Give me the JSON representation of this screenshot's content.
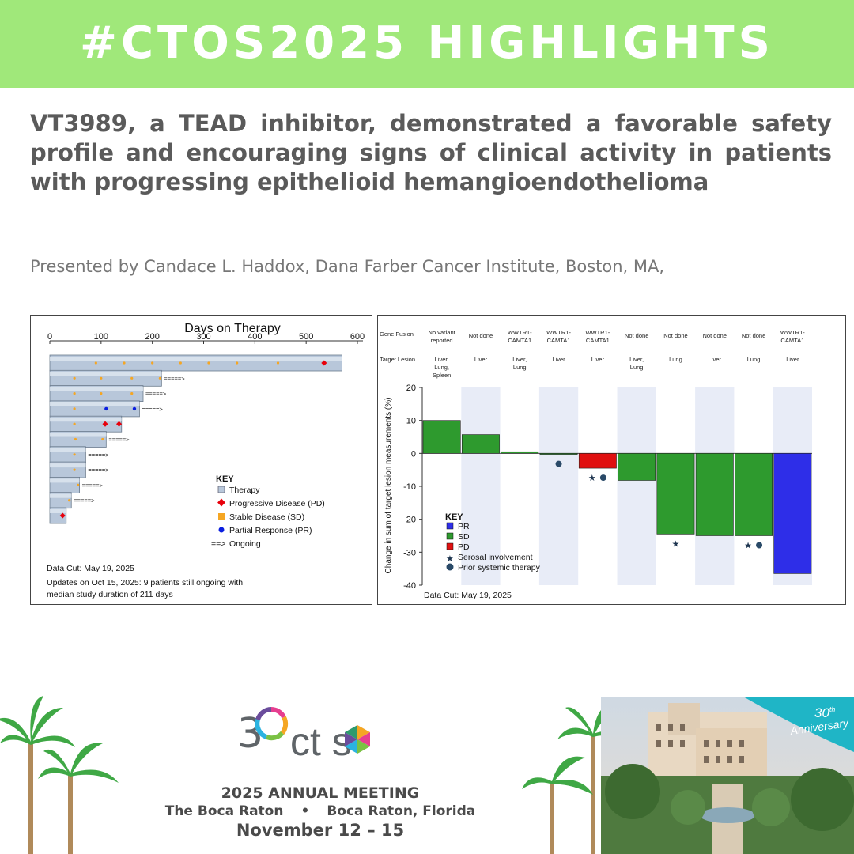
{
  "header": {
    "title": "#CTOS2025 HIGHLIGHTS",
    "bg_color": "#a0e87a"
  },
  "headline": "VT3989, a TEAD inhibitor, demonstrated a favorable safety profile and encouraging signs of clinical activity in patients with progressing epithelioid hemangioendothelioma",
  "presenter": "Presented by Candace L. Haddox, Dana Farber Cancer Institute, Boston, MA,",
  "chart_data": [
    {
      "type": "bar",
      "orientation": "horizontal",
      "title": "Days on Therapy",
      "x_ticks": [
        0,
        100,
        200,
        300,
        400,
        500,
        600
      ],
      "xlim": [
        0,
        600
      ],
      "bars": [
        {
          "days": 570,
          "sd": [
            90,
            145,
            200,
            255,
            310,
            365,
            445
          ],
          "pd": [
            535
          ],
          "pr": [],
          "ongoing": false
        },
        {
          "days": 218,
          "sd": [
            48,
            100,
            160,
            215
          ],
          "pd": [],
          "pr": [],
          "ongoing": true
        },
        {
          "days": 182,
          "sd": [
            48,
            100,
            160
          ],
          "pd": [],
          "pr": [],
          "ongoing": true
        },
        {
          "days": 175,
          "sd": [
            48
          ],
          "pd": [],
          "pr": [
            110,
            165
          ],
          "ongoing": true
        },
        {
          "days": 140,
          "sd": [
            48
          ],
          "pd": [
            108,
            135
          ],
          "pr": [],
          "ongoing": false
        },
        {
          "days": 110,
          "sd": [
            50,
            103
          ],
          "pd": [],
          "pr": [],
          "ongoing": true
        },
        {
          "days": 70,
          "sd": [
            48
          ],
          "pd": [],
          "pr": [],
          "ongoing": true
        },
        {
          "days": 70,
          "sd": [
            48
          ],
          "pd": [],
          "pr": [],
          "ongoing": true
        },
        {
          "days": 58,
          "sd": [
            55
          ],
          "pd": [],
          "pr": [],
          "ongoing": true
        },
        {
          "days": 42,
          "sd": [
            38
          ],
          "pd": [],
          "pr": [],
          "ongoing": true
        },
        {
          "days": 32,
          "sd": [],
          "pd": [
            25
          ],
          "pr": [],
          "ongoing": false
        }
      ],
      "key": {
        "title": "KEY",
        "items": [
          {
            "label": "Therapy",
            "color": "#b8c7da"
          },
          {
            "label": "Progressive Disease (PD)",
            "color": "#e8000b"
          },
          {
            "label": "Stable Disease (SD)",
            "color": "#f5a623"
          },
          {
            "label": "Partial Response (PR)",
            "color": "#0a1ee0"
          },
          {
            "label": "Ongoing",
            "symbol": "==>"
          }
        ]
      },
      "notes": [
        "Data Cut:  May 19, 2025",
        "Updates on Oct 15, 2025: 9 patients still ongoing with",
        "median study duration of 211 days"
      ]
    },
    {
      "type": "bar",
      "title": "",
      "ylabel": "Change in sum of target lesion measurements (%)",
      "ylim": [
        -40,
        20
      ],
      "y_ticks": [
        20,
        10,
        0,
        -10,
        -20,
        -30,
        -40
      ],
      "row_labels": [
        "Gene Fusion",
        "Target Lesion"
      ],
      "patients": [
        {
          "fusion": [
            "No variant",
            "reported"
          ],
          "lesion": [
            "Liver,",
            "Lung,",
            "Spleen"
          ],
          "value": 10,
          "response": "SD",
          "serosal": 0,
          "prior": 0
        },
        {
          "fusion": [
            "Not done"
          ],
          "lesion": [
            "Liver"
          ],
          "value": 5.7,
          "response": "SD",
          "serosal": 0,
          "prior": 0
        },
        {
          "fusion": [
            "WWTR1-",
            "CAMTA1"
          ],
          "lesion": [
            "Liver,",
            "Lung"
          ],
          "value": 0.5,
          "response": "SD",
          "serosal": 0,
          "prior": 0
        },
        {
          "fusion": [
            "WWTR1-",
            "CAMTA1"
          ],
          "lesion": [
            "Liver"
          ],
          "value": -0.3,
          "response": "SD",
          "serosal": 0,
          "prior": 1
        },
        {
          "fusion": [
            "WWTR1-",
            "CAMTA1"
          ],
          "lesion": [
            "Liver"
          ],
          "value": -4.5,
          "response": "PD",
          "serosal": 1,
          "prior": 1
        },
        {
          "fusion": [
            "Not done"
          ],
          "lesion": [
            "Liver,",
            "Lung"
          ],
          "value": -8.2,
          "response": "SD",
          "serosal": 0,
          "prior": 0
        },
        {
          "fusion": [
            "Not done"
          ],
          "lesion": [
            "Lung"
          ],
          "value": -24.5,
          "response": "SD",
          "serosal": 1,
          "prior": 0
        },
        {
          "fusion": [
            "Not done"
          ],
          "lesion": [
            "Liver"
          ],
          "value": -25,
          "response": "SD",
          "serosal": 0,
          "prior": 0
        },
        {
          "fusion": [
            "Not done"
          ],
          "lesion": [
            "Lung"
          ],
          "value": -25,
          "response": "SD",
          "serosal": 1,
          "prior": 1
        },
        {
          "fusion": [
            "WWTR1-",
            "CAMTA1"
          ],
          "lesion": [
            "Liver"
          ],
          "value": -36.5,
          "response": "PR",
          "serosal": 0,
          "prior": 0
        }
      ],
      "colors": {
        "PR": "#2e2ee8",
        "SD": "#2e9a2e",
        "PD": "#e01010",
        "band": "#e8ecf7"
      },
      "key": {
        "title": "KEY",
        "items": [
          {
            "label": "PR",
            "color": "#2e2ee8"
          },
          {
            "label": "SD",
            "color": "#2e9a2e"
          },
          {
            "label": "PD",
            "color": "#e01010"
          },
          {
            "label": "Serosal involvement",
            "symbol": "star"
          },
          {
            "label": "Prior systemic therapy",
            "symbol": "circle"
          }
        ]
      },
      "notes": [
        "Data Cut:  May 19, 2025"
      ]
    }
  ],
  "footer": {
    "logo_number": "3",
    "logo_text": "ct s",
    "meeting_title": "2025 ANNUAL MEETING",
    "venue_left": "The Boca Raton",
    "venue_sep": "•",
    "venue_right": "Boca Raton, Florida",
    "dates": "November 12 – 15",
    "anniversary_num": "30",
    "anniversary_sup": "th",
    "anniversary_word": "Anniversary"
  }
}
